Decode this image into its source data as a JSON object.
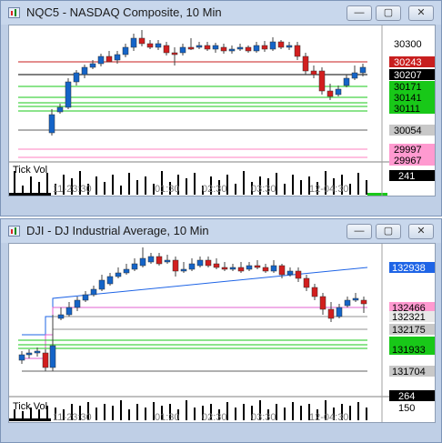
{
  "windows": [
    {
      "title": "NQC5 - NASDAQ Composite, 10 Min",
      "time_labels": [
        "11-23:30",
        "01:30",
        "02:30",
        "03:30",
        "12-04:30"
      ],
      "price_labels": [
        "30300",
        "30243",
        "30207",
        "30171",
        "30141",
        "30111",
        "30054",
        "29997",
        "29967"
      ],
      "volume_label": "Tick Vol",
      "volume_value": "241",
      "colors": {
        "up": "#1464c8",
        "down": "#d21e1e",
        "resistance": "#c81e1e",
        "support": "#18c818",
        "pivot": "#000000",
        "lower": "#ff80c0"
      }
    },
    {
      "title": "DJI - DJ Industrial Average, 10 Min",
      "time_labels": [
        "11-23:30",
        "01:30",
        "02:30",
        "03:30",
        "12-04:30"
      ],
      "price_labels": [
        "132938",
        "132466",
        "132321",
        "132175",
        "131933",
        "131704"
      ],
      "volume_label": "Tick Vol",
      "volume_value": "264",
      "volume_scale": "150",
      "colors": {
        "up": "#1464c8",
        "down": "#d21e1e",
        "resistance": "#1e64e6",
        "support": "#18c818",
        "pivot": "#e060d0"
      }
    }
  ]
}
